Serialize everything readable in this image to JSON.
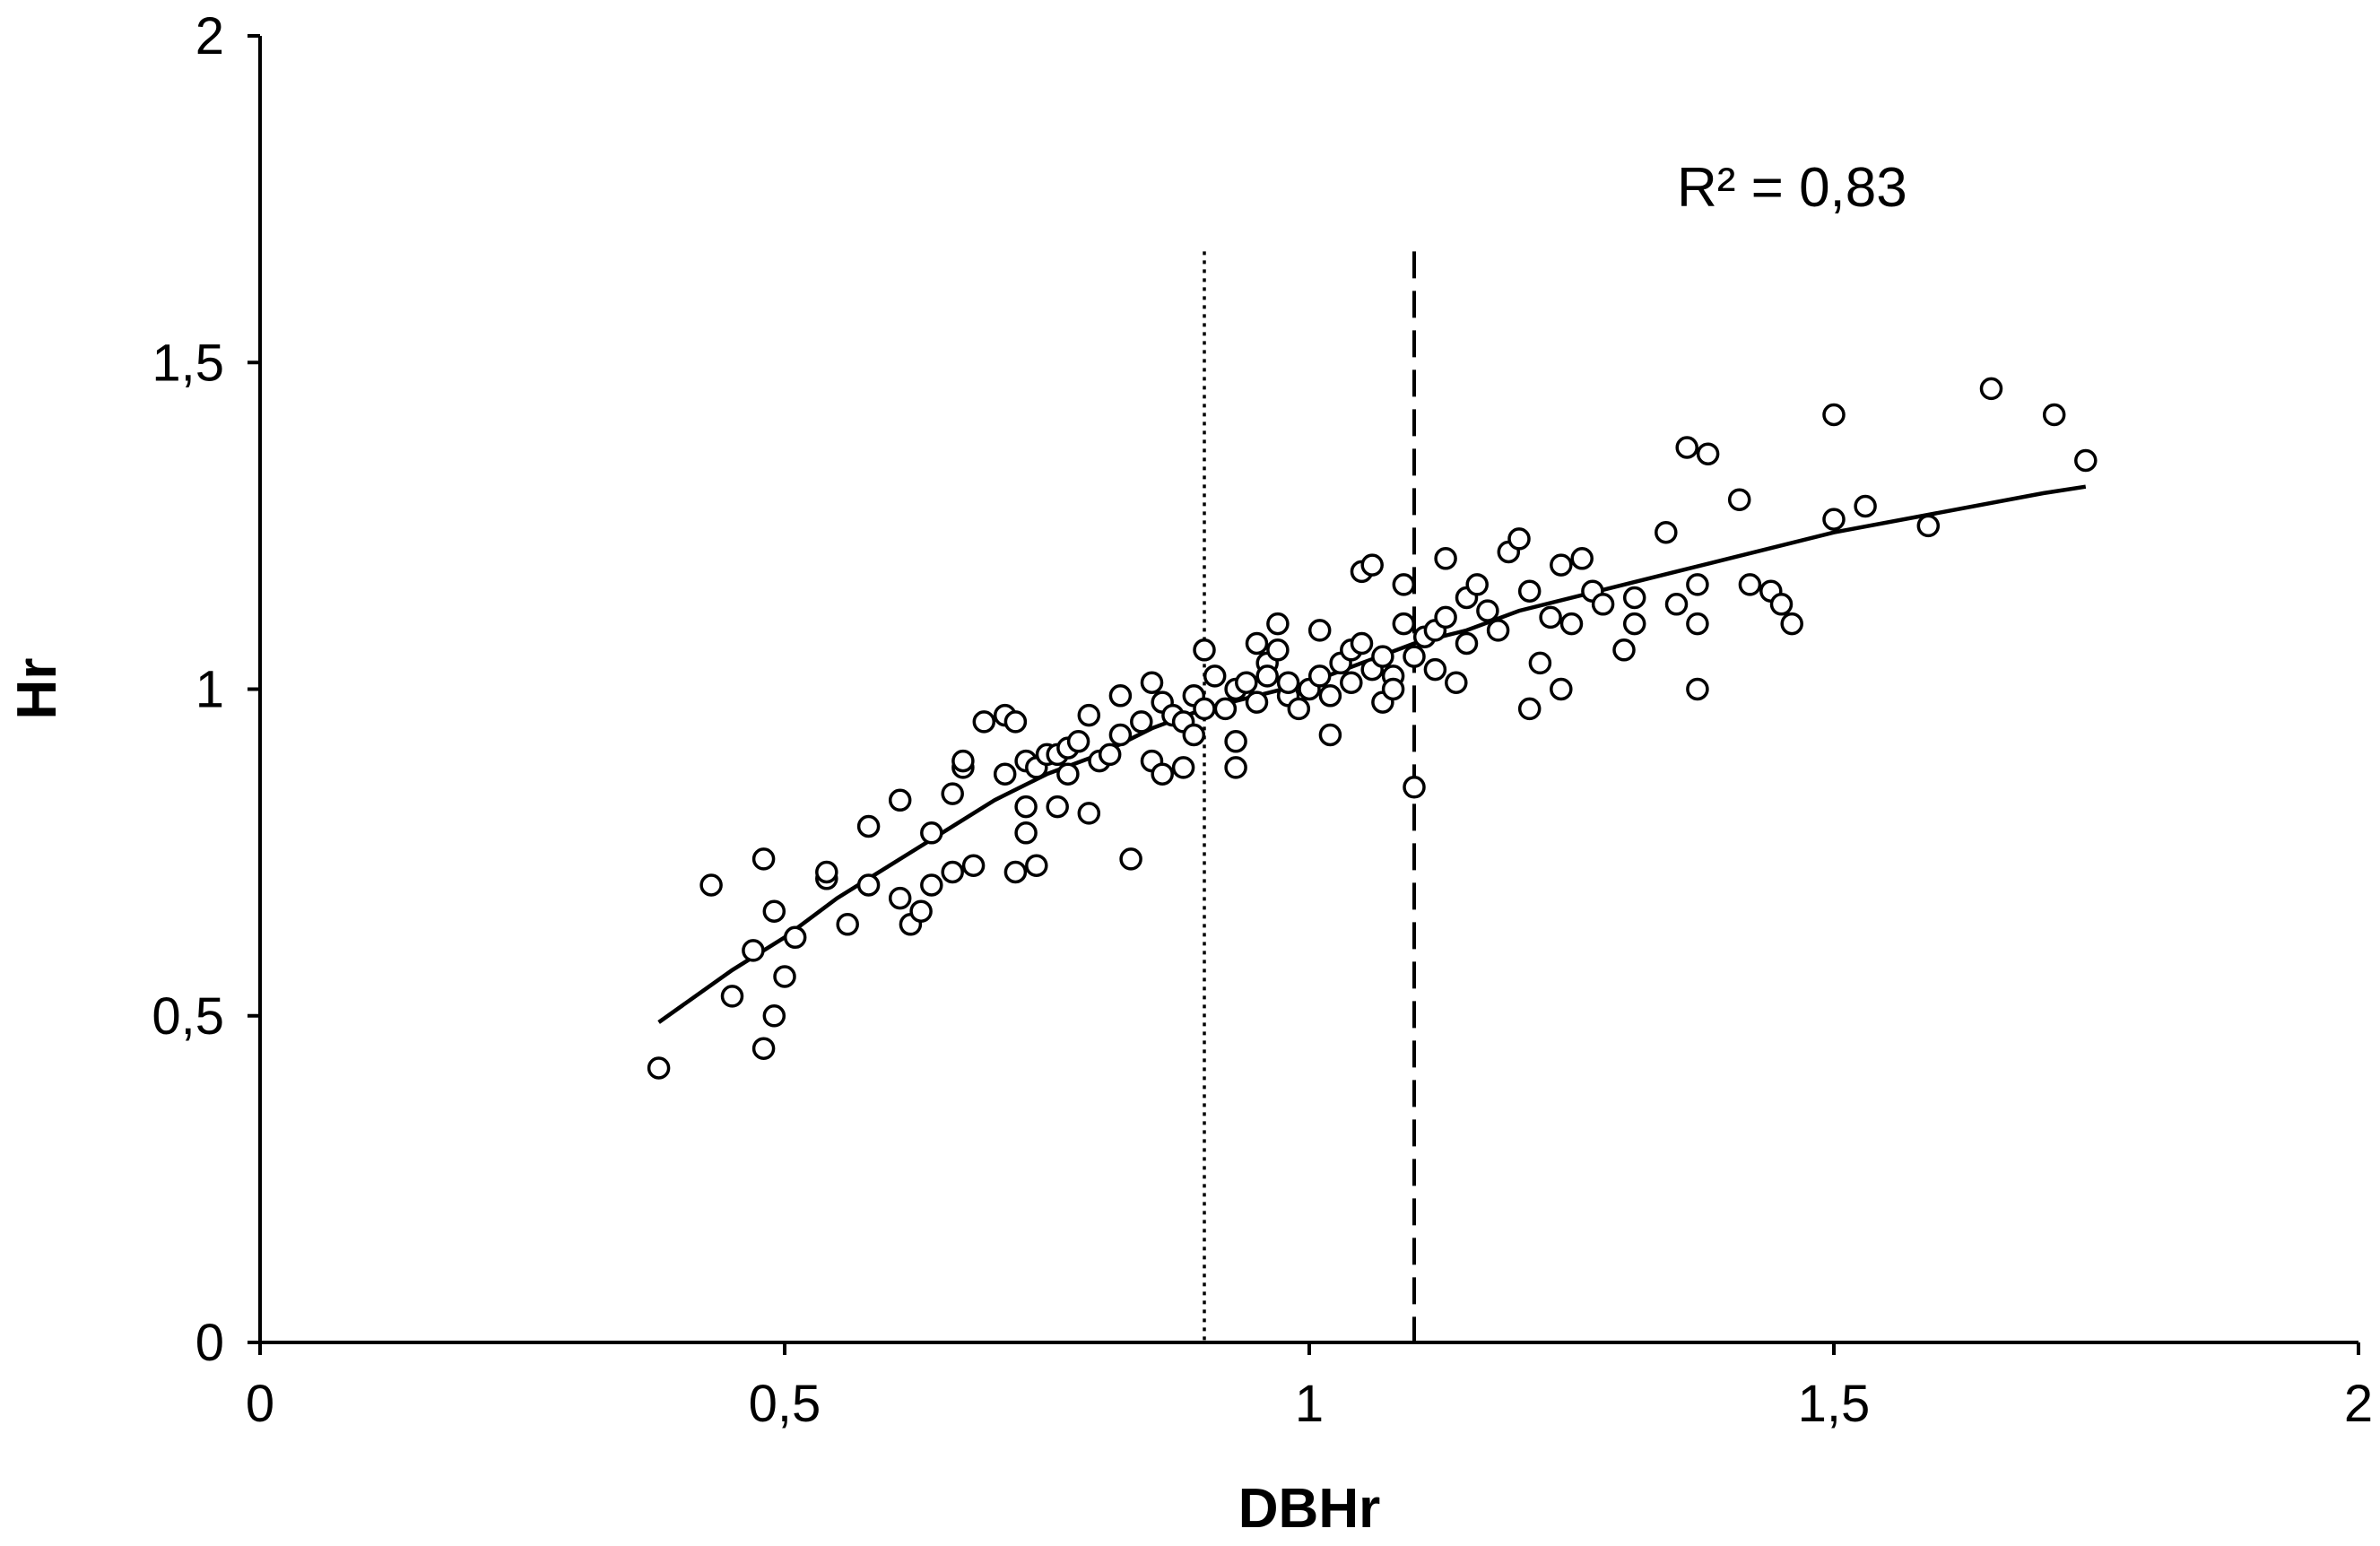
{
  "chart_data": {
    "type": "scatter",
    "title": "",
    "xlabel": "DBHr",
    "ylabel": "Hr",
    "xlim": [
      0,
      2
    ],
    "ylim": [
      0,
      2
    ],
    "x_ticks": [
      0,
      0.5,
      1,
      1.5,
      2
    ],
    "y_ticks": [
      0,
      0.5,
      1,
      1.5,
      2
    ],
    "x_tick_labels": [
      "0",
      "0,5",
      "1",
      "1,5",
      "2"
    ],
    "y_tick_labels": [
      "0",
      "0,5",
      "1",
      "1,5",
      "2"
    ],
    "grid": false,
    "annotation": "R² = 0,83",
    "reference_lines": [
      {
        "name": "dotted",
        "x": 0.9
      },
      {
        "name": "dashed",
        "x": 1.1
      }
    ],
    "trendline": {
      "type": "power",
      "x_start": 0.38,
      "x_end": 1.74,
      "points": [
        [
          0.38,
          0.49
        ],
        [
          0.45,
          0.57
        ],
        [
          0.5,
          0.62
        ],
        [
          0.55,
          0.68
        ],
        [
          0.6,
          0.73
        ],
        [
          0.65,
          0.78
        ],
        [
          0.7,
          0.83
        ],
        [
          0.75,
          0.87
        ],
        [
          0.8,
          0.9
        ],
        [
          0.85,
          0.94
        ],
        [
          0.9,
          0.97
        ],
        [
          0.95,
          0.99
        ],
        [
          1.0,
          1.01
        ],
        [
          1.05,
          1.04
        ],
        [
          1.1,
          1.07
        ],
        [
          1.15,
          1.09
        ],
        [
          1.2,
          1.12
        ],
        [
          1.3,
          1.16
        ],
        [
          1.4,
          1.2
        ],
        [
          1.5,
          1.24
        ],
        [
          1.6,
          1.27
        ],
        [
          1.7,
          1.3
        ],
        [
          1.74,
          1.31
        ]
      ]
    },
    "series": [
      {
        "name": "observations",
        "points": [
          [
            0.38,
            0.42
          ],
          [
            0.43,
            0.7
          ],
          [
            0.45,
            0.53
          ],
          [
            0.47,
            0.6
          ],
          [
            0.48,
            0.45
          ],
          [
            0.48,
            0.74
          ],
          [
            0.49,
            0.5
          ],
          [
            0.49,
            0.66
          ],
          [
            0.5,
            0.56
          ],
          [
            0.51,
            0.62
          ],
          [
            0.54,
            0.71
          ],
          [
            0.54,
            0.72
          ],
          [
            0.56,
            0.64
          ],
          [
            0.58,
            0.79
          ],
          [
            0.58,
            0.7
          ],
          [
            0.61,
            0.83
          ],
          [
            0.61,
            0.68
          ],
          [
            0.62,
            0.64
          ],
          [
            0.63,
            0.66
          ],
          [
            0.64,
            0.7
          ],
          [
            0.64,
            0.78
          ],
          [
            0.66,
            0.84
          ],
          [
            0.66,
            0.72
          ],
          [
            0.67,
            0.88
          ],
          [
            0.67,
            0.89
          ],
          [
            0.68,
            0.73
          ],
          [
            0.69,
            0.95
          ],
          [
            0.71,
            0.96
          ],
          [
            0.71,
            0.87
          ],
          [
            0.72,
            0.72
          ],
          [
            0.72,
            0.95
          ],
          [
            0.73,
            0.78
          ],
          [
            0.73,
            0.82
          ],
          [
            0.73,
            0.89
          ],
          [
            0.74,
            0.73
          ],
          [
            0.74,
            0.88
          ],
          [
            0.75,
            0.9
          ],
          [
            0.76,
            0.9
          ],
          [
            0.76,
            0.82
          ],
          [
            0.77,
            0.87
          ],
          [
            0.77,
            0.91
          ],
          [
            0.78,
            0.92
          ],
          [
            0.79,
            0.96
          ],
          [
            0.79,
            0.81
          ],
          [
            0.8,
            0.89
          ],
          [
            0.81,
            0.9
          ],
          [
            0.82,
            0.93
          ],
          [
            0.82,
            0.99
          ],
          [
            0.83,
            0.74
          ],
          [
            0.84,
            0.95
          ],
          [
            0.85,
            0.89
          ],
          [
            0.85,
            1.01
          ],
          [
            0.86,
            0.87
          ],
          [
            0.86,
            0.98
          ],
          [
            0.87,
            0.96
          ],
          [
            0.88,
            0.88
          ],
          [
            0.88,
            0.95
          ],
          [
            0.89,
            0.93
          ],
          [
            0.89,
            0.99
          ],
          [
            0.9,
            1.06
          ],
          [
            0.9,
            0.97
          ],
          [
            0.91,
            1.02
          ],
          [
            0.92,
            0.97
          ],
          [
            0.93,
            1.0
          ],
          [
            0.93,
            0.92
          ],
          [
            0.93,
            0.88
          ],
          [
            0.94,
            1.01
          ],
          [
            0.95,
            1.07
          ],
          [
            0.95,
            0.98
          ],
          [
            0.96,
            1.04
          ],
          [
            0.96,
            1.02
          ],
          [
            0.97,
            1.1
          ],
          [
            0.97,
            1.06
          ],
          [
            0.98,
            0.99
          ],
          [
            0.98,
            1.01
          ],
          [
            0.99,
            0.97
          ],
          [
            1.0,
            1.0
          ],
          [
            1.01,
            1.02
          ],
          [
            1.01,
            1.09
          ],
          [
            1.02,
            0.99
          ],
          [
            1.02,
            0.93
          ],
          [
            1.03,
            1.04
          ],
          [
            1.04,
            1.01
          ],
          [
            1.04,
            1.06
          ],
          [
            1.05,
            1.18
          ],
          [
            1.05,
            1.07
          ],
          [
            1.06,
            1.19
          ],
          [
            1.06,
            1.03
          ],
          [
            1.07,
            0.98
          ],
          [
            1.07,
            1.05
          ],
          [
            1.08,
            1.02
          ],
          [
            1.08,
            1.0
          ],
          [
            1.09,
            1.16
          ],
          [
            1.09,
            1.1
          ],
          [
            1.1,
            0.85
          ],
          [
            1.1,
            1.05
          ],
          [
            1.11,
            1.08
          ],
          [
            1.12,
            1.03
          ],
          [
            1.12,
            1.09
          ],
          [
            1.13,
            1.2
          ],
          [
            1.13,
            1.11
          ],
          [
            1.14,
            1.01
          ],
          [
            1.15,
            1.07
          ],
          [
            1.15,
            1.14
          ],
          [
            1.16,
            1.16
          ],
          [
            1.17,
            1.12
          ],
          [
            1.18,
            1.09
          ],
          [
            1.19,
            1.21
          ],
          [
            1.2,
            1.23
          ],
          [
            1.21,
            0.97
          ],
          [
            1.21,
            1.15
          ],
          [
            1.22,
            1.04
          ],
          [
            1.23,
            1.11
          ],
          [
            1.24,
            1.19
          ],
          [
            1.24,
            1.0
          ],
          [
            1.25,
            1.1
          ],
          [
            1.26,
            1.2
          ],
          [
            1.27,
            1.15
          ],
          [
            1.28,
            1.13
          ],
          [
            1.3,
            1.06
          ],
          [
            1.31,
            1.1
          ],
          [
            1.31,
            1.14
          ],
          [
            1.34,
            1.24
          ],
          [
            1.35,
            1.13
          ],
          [
            1.36,
            1.37
          ],
          [
            1.37,
            1.0
          ],
          [
            1.37,
            1.1
          ],
          [
            1.37,
            1.16
          ],
          [
            1.38,
            1.36
          ],
          [
            1.41,
            1.29
          ],
          [
            1.42,
            1.16
          ],
          [
            1.44,
            1.15
          ],
          [
            1.45,
            1.13
          ],
          [
            1.46,
            1.1
          ],
          [
            1.5,
            1.42
          ],
          [
            1.5,
            1.26
          ],
          [
            1.53,
            1.28
          ],
          [
            1.59,
            1.25
          ],
          [
            1.65,
            1.46
          ],
          [
            1.71,
            1.42
          ],
          [
            1.74,
            1.35
          ]
        ]
      }
    ]
  }
}
